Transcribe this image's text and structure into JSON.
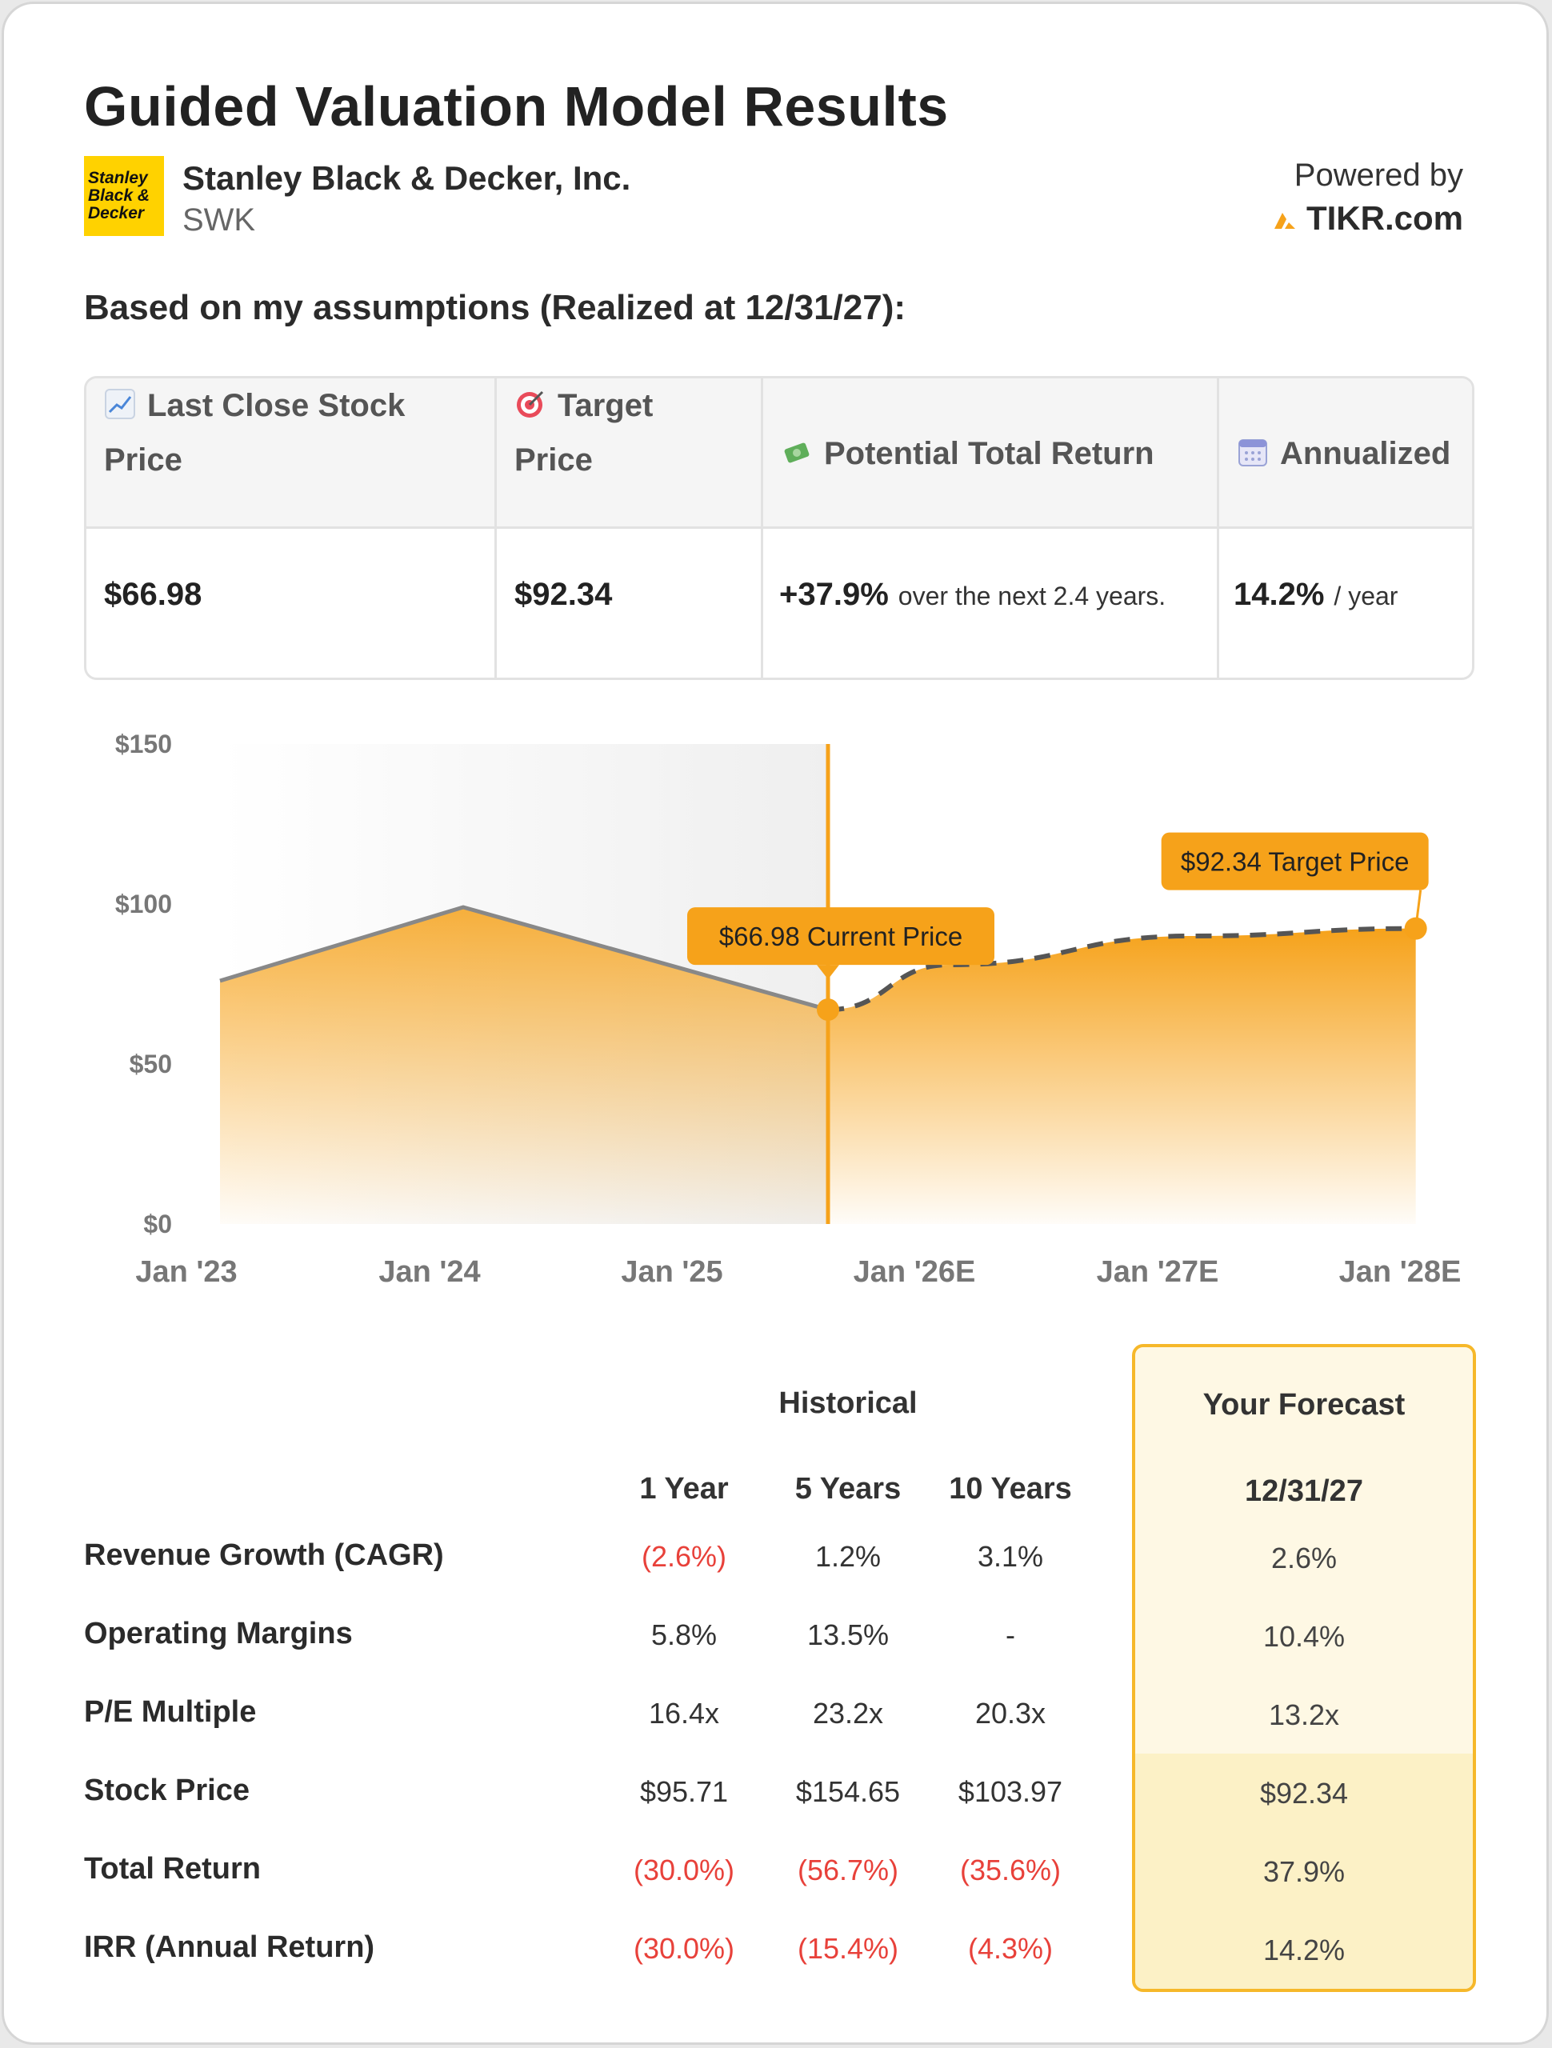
{
  "title": "Guided Valuation Model Results",
  "company": {
    "name": "Stanley Black & Decker, Inc.",
    "ticker": "SWK",
    "logo_lines": [
      "Stanley",
      "Black &",
      "Decker"
    ]
  },
  "powered": {
    "label": "Powered by",
    "brand": "TIKR.com"
  },
  "subtitle": "Based on my assumptions (Realized at 12/31/27):",
  "summary": {
    "headers": {
      "last_close_line1": "Last Close Stock",
      "last_close_line2": "Price",
      "target_line1": "Target",
      "target_line2": "Price",
      "potential": "Potential Total Return",
      "annualized": "Annualized"
    },
    "values": {
      "last_close": "$66.98",
      "target": "$92.34",
      "potential": "+37.9%",
      "potential_note": "over the next 2.4 years.",
      "annualized": "14.2%",
      "annualized_note": "/ year"
    },
    "icons": [
      "chart-increasing-icon",
      "target-icon",
      "money-with-wings-icon",
      "calendar-icon"
    ]
  },
  "chart_data": {
    "type": "area",
    "x_ticks": [
      "Jan '23",
      "Jan '24",
      "Jan '25",
      "Jan '26E",
      "Jan '27E",
      "Jan '28E"
    ],
    "y_ticks": [
      "$150",
      "$100",
      "$50",
      "$0"
    ],
    "ylim": [
      0,
      150
    ],
    "historical": {
      "x": [
        "2023-01",
        "2024-01",
        "2025-07"
      ],
      "y": [
        76,
        99,
        66.98
      ]
    },
    "forecast": {
      "x": [
        "2025-07",
        "2026-01",
        "2027-01",
        "2027-12"
      ],
      "y": [
        66.98,
        81,
        90,
        92.34
      ]
    },
    "annotations": [
      {
        "text": "$66.98 Current Price"
      },
      {
        "text": "$92.34 Target Price"
      }
    ],
    "colors": {
      "accent": "#f6a21a",
      "line": "#888888",
      "shade": "#f3f3f3"
    }
  },
  "metrics": {
    "historical_label": "Historical",
    "forecast_label": "Your Forecast",
    "columns": [
      "1 Year",
      "5 Years",
      "10 Years"
    ],
    "forecast_date": "12/31/27",
    "rows": [
      {
        "label": "Revenue Growth (CAGR)",
        "values": [
          "(2.6%)",
          "1.2%",
          "3.1%"
        ],
        "forecast": "2.6%"
      },
      {
        "label": "Operating Margins",
        "values": [
          "5.8%",
          "13.5%",
          "-"
        ],
        "forecast": "10.4%"
      },
      {
        "label": "P/E Multiple",
        "values": [
          "16.4x",
          "23.2x",
          "20.3x"
        ],
        "forecast": "13.2x"
      },
      {
        "label": "Stock Price",
        "values": [
          "$95.71",
          "$154.65",
          "$103.97"
        ],
        "forecast": "$92.34"
      },
      {
        "label": "Total Return",
        "values": [
          "(30.0%)",
          "(56.7%)",
          "(35.6%)"
        ],
        "forecast": "37.9%"
      },
      {
        "label": "IRR (Annual Return)",
        "values": [
          "(30.0%)",
          "(15.4%)",
          "(4.3%)"
        ],
        "forecast": "14.2%"
      }
    ]
  }
}
